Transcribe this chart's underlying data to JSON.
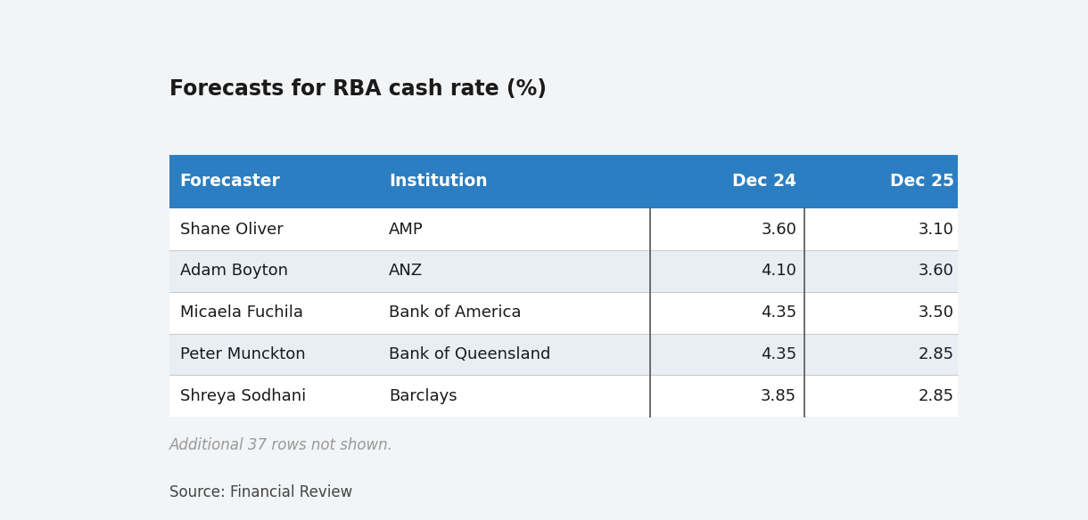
{
  "title": "Forecasts for RBA cash rate (%)",
  "header": [
    "Forecaster",
    "Institution",
    "Dec 24",
    "Dec 25"
  ],
  "rows": [
    [
      "Shane Oliver",
      "AMP",
      "3.60",
      "3.10"
    ],
    [
      "Adam Boyton",
      "ANZ",
      "4.10",
      "3.60"
    ],
    [
      "Micaela Fuchila",
      "Bank of America",
      "4.35",
      "3.50"
    ],
    [
      "Peter Munckton",
      "Bank of Queensland",
      "4.35",
      "2.85"
    ],
    [
      "Shreya Sodhani",
      "Barclays",
      "3.85",
      "2.85"
    ]
  ],
  "footer_note": "Additional 37 rows not shown.",
  "source": "Source: Financial Review",
  "header_bg": "#2B7EC1",
  "header_text": "#FFFFFF",
  "row_bg_odd": "#FFFFFF",
  "row_bg_even": "#E8EEF4",
  "page_bg": "#F2F4F6",
  "title_color": "#1a1a1a",
  "body_text_color": "#1a1a1a",
  "footer_text_color": "#999999",
  "source_text_color": "#444444",
  "divider_color": "#555555",
  "row_divider_color": "#cccccc"
}
